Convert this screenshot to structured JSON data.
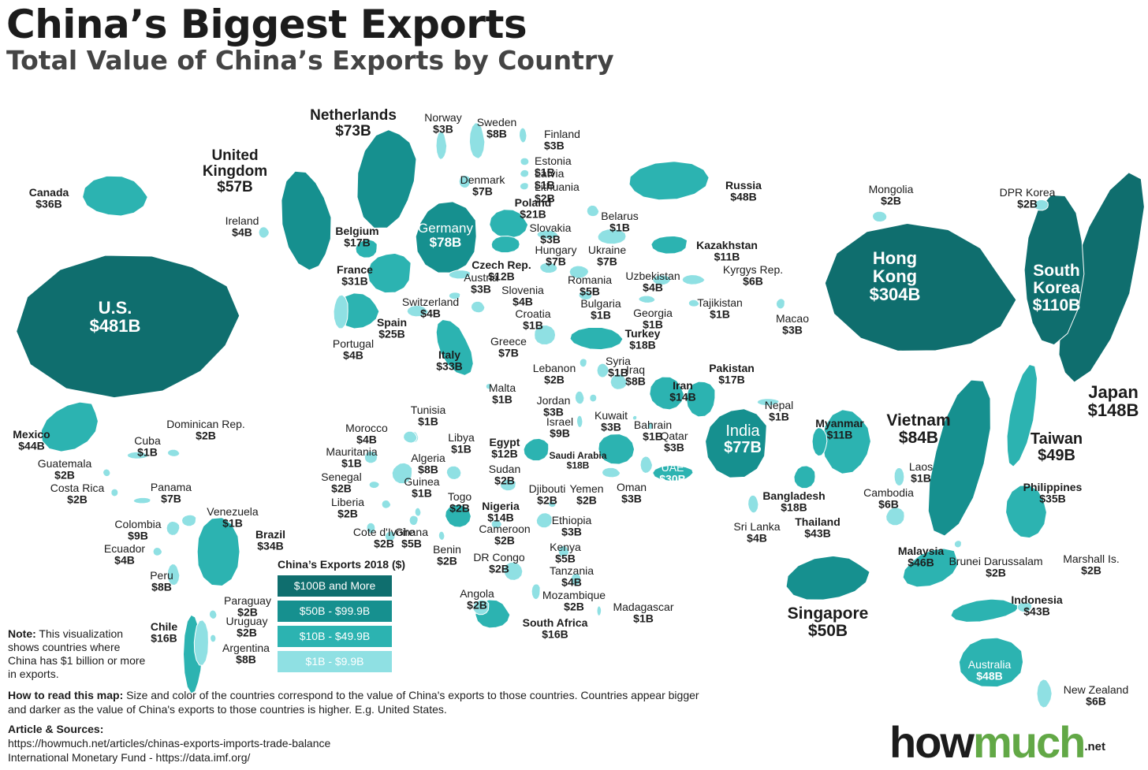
{
  "header": {
    "title": "China’s Biggest Exports",
    "subtitle": "Total Value of China’s Exports by Country"
  },
  "colors": {
    "tier1": "#0f6e6e",
    "tier2": "#16908f",
    "tier3": "#2cb3b1",
    "tier4": "#8fe0e3",
    "text": "#1c1c1c",
    "brand_green": "#62a846"
  },
  "countries": [
    {
      "name": "U.S.",
      "value": "$481B",
      "tier": 1
    },
    {
      "name": "Hong Kong",
      "value": "$304B",
      "tier": 1
    },
    {
      "name": "Japan",
      "value": "$148B",
      "tier": 1
    },
    {
      "name": "South Korea",
      "value": "$110B",
      "tier": 1
    },
    {
      "name": "Vietnam",
      "value": "$84B",
      "tier": 2
    },
    {
      "name": "Germany",
      "value": "$78B",
      "tier": 2
    },
    {
      "name": "India",
      "value": "$77B",
      "tier": 2
    },
    {
      "name": "Netherlands",
      "value": "$73B",
      "tier": 2
    },
    {
      "name": "United Kingdom",
      "value": "$57B",
      "tier": 2
    },
    {
      "name": "Singapore",
      "value": "$50B",
      "tier": 2
    },
    {
      "name": "Taiwan",
      "value": "$49B",
      "tier": 3
    },
    {
      "name": "Russia",
      "value": "$48B",
      "tier": 3
    },
    {
      "name": "Australia",
      "value": "$48B",
      "tier": 3
    },
    {
      "name": "Malaysia",
      "value": "$46B",
      "tier": 3
    },
    {
      "name": "Mexico",
      "value": "$44B",
      "tier": 3
    },
    {
      "name": "Thailand",
      "value": "$43B",
      "tier": 3
    },
    {
      "name": "Indonesia",
      "value": "$43B",
      "tier": 3
    },
    {
      "name": "Canada",
      "value": "$36B",
      "tier": 3
    },
    {
      "name": "Philippines",
      "value": "$35B",
      "tier": 3
    },
    {
      "name": "Brazil",
      "value": "$34B",
      "tier": 3
    },
    {
      "name": "Italy",
      "value": "$33B",
      "tier": 3
    },
    {
      "name": "France",
      "value": "$31B",
      "tier": 3
    },
    {
      "name": "UAE",
      "value": "$30B",
      "tier": 3
    },
    {
      "name": "Spain",
      "value": "$25B",
      "tier": 3
    },
    {
      "name": "Poland",
      "value": "$21B",
      "tier": 3
    },
    {
      "name": "Turkey",
      "value": "$18B",
      "tier": 3
    },
    {
      "name": "Saudi Arabia",
      "value": "$18B",
      "tier": 3
    },
    {
      "name": "Bangladesh",
      "value": "$18B",
      "tier": 3
    },
    {
      "name": "Belgium",
      "value": "$17B",
      "tier": 3
    },
    {
      "name": "Pakistan",
      "value": "$17B",
      "tier": 3
    },
    {
      "name": "Chile",
      "value": "$16B",
      "tier": 3
    },
    {
      "name": "South Africa",
      "value": "$16B",
      "tier": 3
    },
    {
      "name": "Iran",
      "value": "$14B",
      "tier": 3
    },
    {
      "name": "Nigeria",
      "value": "$14B",
      "tier": 3
    },
    {
      "name": "Czech Rep.",
      "value": "$12B",
      "tier": 3
    },
    {
      "name": "Egypt",
      "value": "$12B",
      "tier": 3
    },
    {
      "name": "Kazakhstan",
      "value": "$11B",
      "tier": 3
    },
    {
      "name": "Myanmar",
      "value": "$11B",
      "tier": 3
    },
    {
      "name": "Norway",
      "value": "$3B",
      "tier": 4
    },
    {
      "name": "Sweden",
      "value": "$8B",
      "tier": 4
    },
    {
      "name": "Finland",
      "value": "$3B",
      "tier": 4
    },
    {
      "name": "Estonia",
      "value": "$1B",
      "tier": 4
    },
    {
      "name": "Latvia",
      "value": "$1B",
      "tier": 4
    },
    {
      "name": "Lithuania",
      "value": "$2B",
      "tier": 4
    },
    {
      "name": "Denmark",
      "value": "$7B",
      "tier": 4
    },
    {
      "name": "Ireland",
      "value": "$4B",
      "tier": 4
    },
    {
      "name": "Belarus",
      "value": "$1B",
      "tier": 4
    },
    {
      "name": "Slovakia",
      "value": "$3B",
      "tier": 4
    },
    {
      "name": "Hungary",
      "value": "$7B",
      "tier": 4
    },
    {
      "name": "Ukraine",
      "value": "$7B",
      "tier": 4
    },
    {
      "name": "Austria",
      "value": "$3B",
      "tier": 4
    },
    {
      "name": "Slovenia",
      "value": "$4B",
      "tier": 4
    },
    {
      "name": "Romania",
      "value": "$5B",
      "tier": 4
    },
    {
      "name": "Switzerland",
      "value": "$4B",
      "tier": 4
    },
    {
      "name": "Croatia",
      "value": "$1B",
      "tier": 4
    },
    {
      "name": "Bulgaria",
      "value": "$1B",
      "tier": 4
    },
    {
      "name": "Greece",
      "value": "$7B",
      "tier": 4
    },
    {
      "name": "Portugal",
      "value": "$4B",
      "tier": 4
    },
    {
      "name": "Malta",
      "value": "$1B",
      "tier": 4
    },
    {
      "name": "Uzbekistan",
      "value": "$4B",
      "tier": 4
    },
    {
      "name": "Kyrgys Rep.",
      "value": "$6B",
      "tier": 4
    },
    {
      "name": "Tajikistan",
      "value": "$1B",
      "tier": 4
    },
    {
      "name": "Georgia",
      "value": "$1B",
      "tier": 4
    },
    {
      "name": "Mongolia",
      "value": "$2B",
      "tier": 4
    },
    {
      "name": "DPR Korea",
      "value": "$2B",
      "tier": 4
    },
    {
      "name": "Macao",
      "value": "$3B",
      "tier": 4
    },
    {
      "name": "Lebanon",
      "value": "$2B",
      "tier": 4
    },
    {
      "name": "Syria",
      "value": "$1B",
      "tier": 4
    },
    {
      "name": "Iraq",
      "value": "$8B",
      "tier": 4
    },
    {
      "name": "Jordan",
      "value": "$3B",
      "tier": 4
    },
    {
      "name": "Israel",
      "value": "$9B",
      "tier": 4
    },
    {
      "name": "Kuwait",
      "value": "$3B",
      "tier": 4
    },
    {
      "name": "Bahrain",
      "value": "$1B",
      "tier": 4
    },
    {
      "name": "Qatar",
      "value": "$3B",
      "tier": 4
    },
    {
      "name": "Nepal",
      "value": "$1B",
      "tier": 4
    },
    {
      "name": "Oman",
      "value": "$3B",
      "tier": 4
    },
    {
      "name": "Yemen",
      "value": "$2B",
      "tier": 4
    },
    {
      "name": "Sri Lanka",
      "value": "$4B",
      "tier": 4
    },
    {
      "name": "Laos",
      "value": "$1B",
      "tier": 4
    },
    {
      "name": "Cambodia",
      "value": "$6B",
      "tier": 4
    },
    {
      "name": "Brunei Darussalam",
      "value": "$2B",
      "tier": 4
    },
    {
      "name": "Marshall Is.",
      "value": "$2B",
      "tier": 4
    },
    {
      "name": "New Zealand",
      "value": "$6B",
      "tier": 4
    },
    {
      "name": "Tunisia",
      "value": "$1B",
      "tier": 4
    },
    {
      "name": "Morocco",
      "value": "$4B",
      "tier": 4
    },
    {
      "name": "Libya",
      "value": "$1B",
      "tier": 4
    },
    {
      "name": "Mauritania",
      "value": "$1B",
      "tier": 4
    },
    {
      "name": "Algeria",
      "value": "$8B",
      "tier": 4
    },
    {
      "name": "Sudan",
      "value": "$2B",
      "tier": 4
    },
    {
      "name": "Senegal",
      "value": "$2B",
      "tier": 4
    },
    {
      "name": "Guinea",
      "value": "$1B",
      "tier": 4
    },
    {
      "name": "Togo",
      "value": "$2B",
      "tier": 4
    },
    {
      "name": "Djibouti",
      "value": "$2B",
      "tier": 4
    },
    {
      "name": "Liberia",
      "value": "$2B",
      "tier": 4
    },
    {
      "name": "Ethiopia",
      "value": "$3B",
      "tier": 4
    },
    {
      "name": "Cote d'Ivoire",
      "value": "$2B",
      "tier": 4
    },
    {
      "name": "Ghana",
      "value": "$5B",
      "tier": 4
    },
    {
      "name": "Cameroon",
      "value": "$2B",
      "tier": 4
    },
    {
      "name": "Kenya",
      "value": "$5B",
      "tier": 4
    },
    {
      "name": "Benin",
      "value": "$2B",
      "tier": 4
    },
    {
      "name": "DR Congo",
      "value": "$2B",
      "tier": 4
    },
    {
      "name": "Tanzania",
      "value": "$4B",
      "tier": 4
    },
    {
      "name": "Angola",
      "value": "$2B",
      "tier": 4
    },
    {
      "name": "Mozambique",
      "value": "$2B",
      "tier": 4
    },
    {
      "name": "Madagascar",
      "value": "$1B",
      "tier": 4
    },
    {
      "name": "Cuba",
      "value": "$1B",
      "tier": 4
    },
    {
      "name": "Dominican Rep.",
      "value": "$2B",
      "tier": 4
    },
    {
      "name": "Guatemala",
      "value": "$2B",
      "tier": 4
    },
    {
      "name": "Costa Rica",
      "value": "$2B",
      "tier": 4
    },
    {
      "name": "Panama",
      "value": "$7B",
      "tier": 4
    },
    {
      "name": "Venezuela",
      "value": "$1B",
      "tier": 4
    },
    {
      "name": "Colombia",
      "value": "$9B",
      "tier": 4
    },
    {
      "name": "Ecuador",
      "value": "$4B",
      "tier": 4
    },
    {
      "name": "Peru",
      "value": "$8B",
      "tier": 4
    },
    {
      "name": "Paraguay",
      "value": "$2B",
      "tier": 4
    },
    {
      "name": "Uruguay",
      "value": "$2B",
      "tier": 4
    },
    {
      "name": "Argentina",
      "value": "$8B",
      "tier": 4
    }
  ],
  "legend": {
    "title": "China’s Exports 2018 ($)",
    "items": [
      {
        "label": "$100B and More",
        "color": "#0f6e6e"
      },
      {
        "label": "$50B - $99.9B",
        "color": "#16908f"
      },
      {
        "label": "$10B - $49.9B",
        "color": "#2cb3b1"
      },
      {
        "label": "$1B - $9.9B",
        "color": "#8fe0e3"
      }
    ]
  },
  "note": {
    "label": "Note:",
    "text": "This visualization shows countries where China has $1 billion or more in exports."
  },
  "how_to_read": {
    "label": "How to read this map:",
    "text": "Size and color of the countries correspond to the value of China's exports to those countries. Countries appear bigger and darker as the value of China's exports to those countries is higher. E.g. United States."
  },
  "sources": {
    "label": "Article & Sources:",
    "lines": [
      "https://howmuch.net/articles/chinas-exports-imports-trade-balance",
      "International Monetary Fund - https://data.imf.org/"
    ]
  },
  "logo": {
    "how": "how",
    "much": "much",
    "net": ".net"
  }
}
